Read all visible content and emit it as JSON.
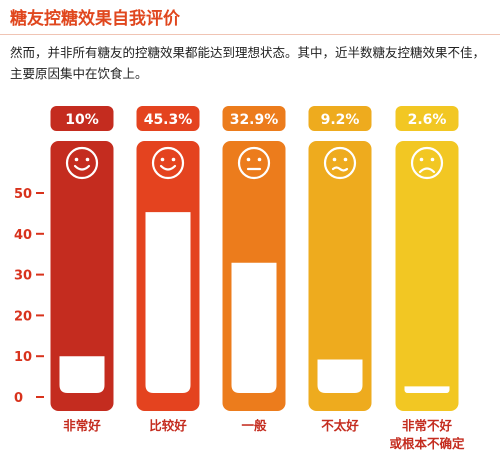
{
  "header": {
    "title": "糖友控糖效果自我评价",
    "description": "然而，并非所有糖友的控糖效果都能达到理想状态。其中，近半数糖友控糖效果不佳，主要原因集中在饮食上。"
  },
  "chart_data": {
    "type": "bar",
    "title": "",
    "xlabel": "",
    "ylabel": "",
    "ylim": [
      0,
      50
    ],
    "yticks": [
      0,
      10,
      20,
      30,
      40,
      50
    ],
    "grid": false,
    "categories": [
      {
        "lines": [
          "非常好"
        ],
        "value": 10,
        "value_label": "10%",
        "face": "smile-icon",
        "color": "#c42c1f"
      },
      {
        "lines": [
          "比较好"
        ],
        "value": 45.3,
        "value_label": "45.3%",
        "face": "smile-icon",
        "color": "#e4431f"
      },
      {
        "lines": [
          "一般"
        ],
        "value": 32.9,
        "value_label": "32.9%",
        "face": "neutral-face-icon",
        "color": "#ec7c1c"
      },
      {
        "lines": [
          "不太好"
        ],
        "value": 9.2,
        "value_label": "9.2%",
        "face": "wavy-mouth-face-icon",
        "color": "#eeab1e"
      },
      {
        "lines": [
          "非常不好",
          "或根本不确定"
        ],
        "value": 2.6,
        "value_label": "2.6%",
        "face": "sad-face-icon",
        "color": "#f2c723"
      }
    ],
    "axis_color": "#d8321c"
  }
}
